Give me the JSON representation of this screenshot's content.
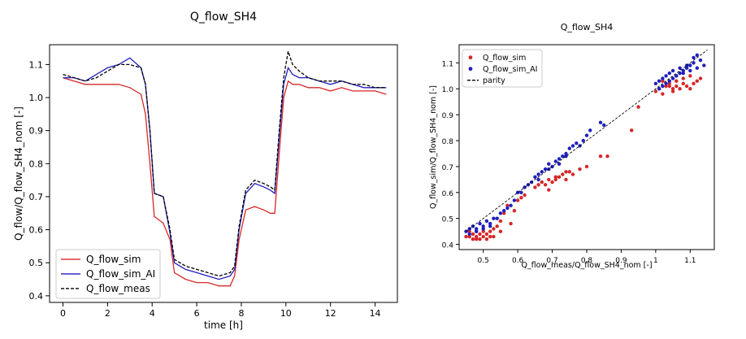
{
  "chart_data": [
    {
      "type": "line",
      "title": "Q_flow_SH4",
      "xlabel": "time [h]",
      "ylabel": "Q_flow/Q_flow_SH4_nom [-]",
      "xlim": [
        -0.6,
        15.0
      ],
      "ylim": [
        0.38,
        1.16
      ],
      "xticks": [
        0,
        2,
        4,
        6,
        8,
        10,
        12,
        14
      ],
      "yticks": [
        0.4,
        0.5,
        0.6,
        0.7,
        0.8,
        0.9,
        1.0,
        1.1
      ],
      "grid": false,
      "legend": "lower-left",
      "x": [
        0,
        0.5,
        1,
        1.5,
        2,
        2.5,
        3,
        3.5,
        3.7,
        3.9,
        4.1,
        4.5,
        4.8,
        5.0,
        5.5,
        6.0,
        6.5,
        7.0,
        7.5,
        7.7,
        7.9,
        8.2,
        8.6,
        9.0,
        9.3,
        9.5,
        9.7,
        9.9,
        10.1,
        10.3,
        10.6,
        11.0,
        11.5,
        12.0,
        12.5,
        13.0,
        13.5,
        14.0,
        14.5
      ],
      "series": [
        {
          "name": "Q_flow_sim",
          "color": "#d62728",
          "style": "solid",
          "values": [
            1.06,
            1.05,
            1.04,
            1.04,
            1.04,
            1.04,
            1.03,
            1.01,
            0.95,
            0.8,
            0.64,
            0.62,
            0.57,
            0.47,
            0.45,
            0.44,
            0.44,
            0.43,
            0.43,
            0.46,
            0.57,
            0.66,
            0.67,
            0.66,
            0.65,
            0.65,
            0.83,
            1.0,
            1.05,
            1.04,
            1.04,
            1.03,
            1.03,
            1.02,
            1.03,
            1.02,
            1.02,
            1.02,
            1.01
          ]
        },
        {
          "name": "Q_flow_sim_AI",
          "color": "#1f1fbf",
          "style": "solid",
          "values": [
            1.06,
            1.06,
            1.05,
            1.07,
            1.09,
            1.1,
            1.12,
            1.09,
            1.04,
            0.9,
            0.71,
            0.7,
            0.59,
            0.5,
            0.48,
            0.47,
            0.46,
            0.45,
            0.46,
            0.48,
            0.6,
            0.71,
            0.74,
            0.73,
            0.72,
            0.71,
            0.88,
            1.04,
            1.09,
            1.07,
            1.06,
            1.06,
            1.05,
            1.04,
            1.05,
            1.04,
            1.03,
            1.03,
            1.03
          ]
        },
        {
          "name": "Q_flow_meas",
          "color": "#000000",
          "style": "dashed",
          "values": [
            1.07,
            1.06,
            1.05,
            1.06,
            1.08,
            1.1,
            1.1,
            1.09,
            1.04,
            0.9,
            0.71,
            0.7,
            0.6,
            0.51,
            0.49,
            0.48,
            0.47,
            0.46,
            0.47,
            0.49,
            0.61,
            0.72,
            0.75,
            0.74,
            0.73,
            0.72,
            0.9,
            1.06,
            1.14,
            1.1,
            1.08,
            1.06,
            1.05,
            1.05,
            1.05,
            1.04,
            1.04,
            1.03,
            1.03
          ]
        }
      ]
    },
    {
      "type": "scatter",
      "title": "Q_flow_SH4",
      "xlabel": "Q_flow_meas/Q_flow_SH4_nom [-]",
      "ylabel": "Q_flow_sim/Q_flow_SH4_nom [-]",
      "xlim": [
        0.43,
        1.17
      ],
      "ylim": [
        0.38,
        1.17
      ],
      "xticks": [
        0.5,
        0.6,
        0.7,
        0.8,
        0.9,
        1.0,
        1.1
      ],
      "yticks": [
        0.4,
        0.5,
        0.6,
        0.7,
        0.8,
        0.9,
        1.0,
        1.1
      ],
      "grid": false,
      "legend": "upper-left",
      "parity": {
        "name": "parity",
        "color": "#000000",
        "style": "dashed",
        "x": [
          0.45,
          1.15
        ],
        "y": [
          0.45,
          1.15
        ]
      },
      "series": [
        {
          "name": "Q_flow_sim",
          "color": "#d62728",
          "x": [
            0.45,
            0.46,
            0.47,
            0.47,
            0.48,
            0.48,
            0.49,
            0.49,
            0.5,
            0.5,
            0.51,
            0.51,
            0.52,
            0.52,
            0.53,
            0.54,
            0.55,
            0.46,
            0.48,
            0.5,
            0.53,
            0.55,
            0.56,
            0.58,
            0.59,
            0.6,
            0.61,
            0.62,
            0.57,
            0.65,
            0.66,
            0.67,
            0.68,
            0.69,
            0.7,
            0.71,
            0.72,
            0.73,
            0.74,
            0.75,
            0.76,
            0.78,
            0.8,
            0.69,
            0.71,
            0.74,
            0.84,
            0.86,
            0.93,
            0.95,
            1.0,
            1.01,
            1.02,
            1.03,
            1.04,
            1.05,
            1.06,
            1.07,
            1.08,
            1.09,
            1.1,
            1.11,
            1.12,
            1.13,
            1.02,
            1.05,
            1.08,
            1.1,
            1.04,
            1.06
          ],
          "y": [
            0.43,
            0.43,
            0.42,
            0.44,
            0.43,
            0.42,
            0.44,
            0.42,
            0.43,
            0.45,
            0.42,
            0.44,
            0.43,
            0.45,
            0.46,
            0.47,
            0.49,
            0.45,
            0.45,
            0.46,
            0.43,
            0.45,
            0.52,
            0.48,
            0.53,
            0.57,
            0.58,
            0.59,
            0.55,
            0.62,
            0.63,
            0.64,
            0.63,
            0.65,
            0.64,
            0.65,
            0.66,
            0.67,
            0.65,
            0.68,
            0.67,
            0.69,
            0.7,
            0.61,
            0.66,
            0.68,
            0.74,
            0.74,
            0.84,
            0.93,
            0.99,
            1.0,
            0.98,
            1.01,
            1.02,
            0.99,
            1.01,
            1.0,
            1.02,
            1.01,
            1.0,
            1.02,
            1.03,
            1.04,
            1.03,
            1.0,
            1.04,
            1.05,
            1.01,
            1.03
          ]
        },
        {
          "name": "Q_flow_sim_AI",
          "color": "#1f1fbf",
          "x": [
            0.45,
            0.46,
            0.47,
            0.48,
            0.49,
            0.5,
            0.51,
            0.52,
            0.53,
            0.54,
            0.46,
            0.48,
            0.5,
            0.52,
            0.55,
            0.56,
            0.57,
            0.58,
            0.59,
            0.6,
            0.61,
            0.62,
            0.63,
            0.64,
            0.65,
            0.66,
            0.67,
            0.68,
            0.69,
            0.7,
            0.71,
            0.72,
            0.73,
            0.74,
            0.75,
            0.76,
            0.77,
            0.79,
            0.81,
            0.84,
            0.85,
            0.78,
            0.8,
            0.66,
            0.69,
            0.72,
            0.74,
            1.0,
            1.01,
            1.02,
            1.03,
            1.04,
            1.05,
            1.06,
            1.07,
            1.08,
            1.09,
            1.1,
            1.11,
            1.12,
            1.13,
            1.14,
            1.01,
            1.03,
            1.05,
            1.07,
            1.09,
            1.11,
            1.04,
            1.06,
            1.08,
            1.1,
            1.12,
            1.02
          ],
          "y": [
            0.45,
            0.46,
            0.47,
            0.46,
            0.48,
            0.47,
            0.49,
            0.48,
            0.5,
            0.5,
            0.44,
            0.45,
            0.46,
            0.47,
            0.52,
            0.53,
            0.54,
            0.55,
            0.57,
            0.6,
            0.6,
            0.62,
            0.63,
            0.64,
            0.66,
            0.67,
            0.68,
            0.69,
            0.71,
            0.7,
            0.72,
            0.73,
            0.74,
            0.75,
            0.77,
            0.78,
            0.79,
            0.8,
            0.84,
            0.87,
            0.86,
            0.78,
            0.82,
            0.65,
            0.69,
            0.71,
            0.74,
            1.02,
            1.03,
            1.04,
            1.05,
            1.06,
            1.07,
            1.05,
            1.08,
            1.06,
            1.09,
            1.07,
            1.1,
            1.08,
            1.11,
            1.09,
            1.0,
            1.02,
            1.04,
            1.06,
            1.08,
            1.12,
            1.03,
            1.05,
            1.07,
            1.09,
            1.13,
            1.01
          ]
        }
      ]
    }
  ]
}
